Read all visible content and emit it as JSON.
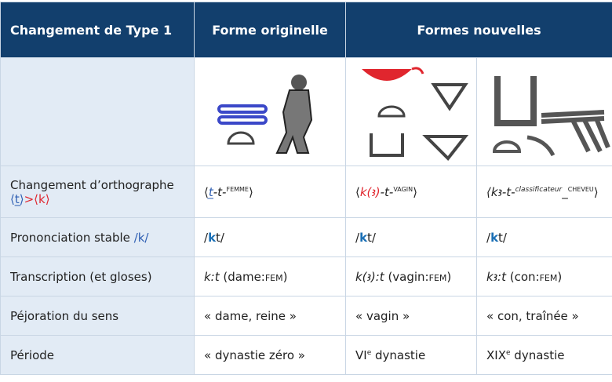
{
  "header": {
    "col1": "Changement de Type 1",
    "col2": "Forme originelle",
    "col3": "Formes nouvelles"
  },
  "rows": [
    {
      "label": [
        "Changement d’orthographe",
        "⟨t̲⟩",
        ">⟨k⟩"
      ],
      "cells": [
        [
          "⟨",
          "t̲",
          "-t-",
          "femme",
          "⟩"
        ],
        [
          "⟨",
          "k(ꜣ)",
          "-t-",
          "vagin",
          "⟩"
        ],
        [
          "⟨kꜣ-t-",
          "classificateur",
          "_",
          "cheveu",
          "⟩"
        ]
      ]
    },
    {
      "label": [
        "Prononciation stable",
        "/k/"
      ],
      "cells": [
        [
          "/",
          "k",
          "t/"
        ],
        [
          "/",
          "k",
          "t/"
        ],
        [
          "/",
          "k",
          "t/"
        ]
      ]
    },
    {
      "label": [
        "Transcription (et gloses)"
      ],
      "cells": [
        [
          "k:t",
          " (dame:",
          "fem",
          ")"
        ],
        [
          "k(ꜣ):t",
          " (vagin:",
          "fem",
          ")"
        ],
        [
          "kꜣ:t",
          " (con:",
          "fem",
          ")"
        ]
      ]
    },
    {
      "label": [
        "Péjoration du sens"
      ],
      "cells": [
        [
          "« dame, reine »"
        ],
        [
          "« vagin »"
        ],
        [
          "« con, traînée »"
        ]
      ]
    },
    {
      "label": [
        "Période"
      ],
      "cells": [
        [
          "« dynastie zéro »"
        ],
        [
          "VI",
          "e",
          " dynastie"
        ],
        [
          "XIX",
          "e",
          " dynastie"
        ]
      ]
    }
  ]
}
